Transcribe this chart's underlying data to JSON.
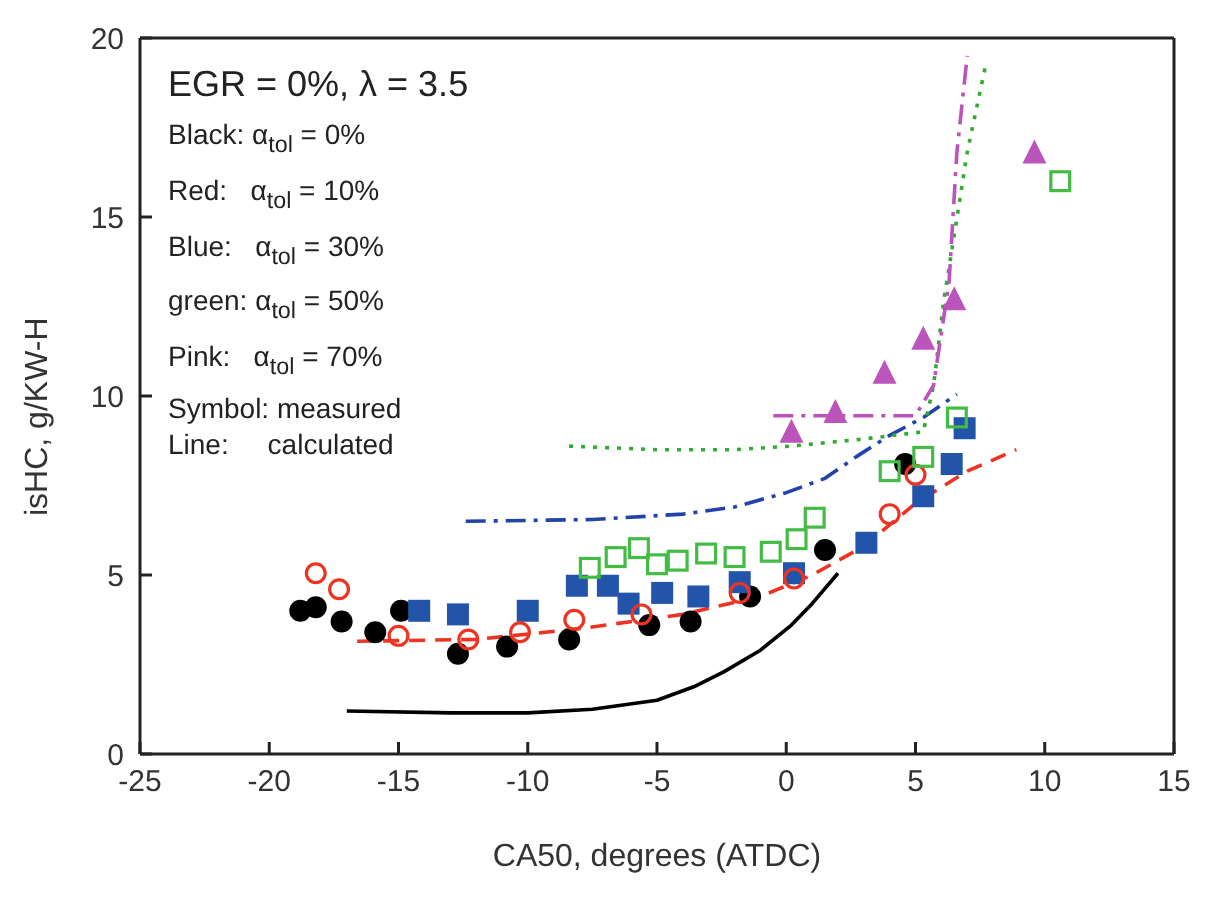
{
  "chart_data": {
    "type": "scatter",
    "xlabel": "CA50, degrees (ATDC)",
    "ylabel": "isHC, g/KW-H",
    "xlim": [
      -25,
      15
    ],
    "xticks": [
      -25,
      -20,
      -15,
      -10,
      -5,
      0,
      5,
      10,
      15
    ],
    "ylim": [
      0,
      20
    ],
    "yticks": [
      0,
      5,
      10,
      15,
      20
    ],
    "annotations": [
      "EGR = 0%, λ = 3.5",
      "Black: α$_{tol}$ = 0%",
      "Red:   α$_{tol}$ = 10%",
      "Blue:   α$_{tol}$ = 30%",
      "green: α$_{tol}$ = 50%",
      "Pink:   α$_{tol}$ = 70%",
      "Symbol: measured",
      "Line:     calculated"
    ],
    "series": [
      {
        "type": "line",
        "color": "#000000",
        "line_style": "solid",
        "marker": "none",
        "x": [
          -17,
          -13,
          -10,
          -7.5,
          -5,
          -3.5,
          -2.4,
          -1,
          0.2,
          1,
          2
        ],
        "values": [
          1.2,
          1.15,
          1.15,
          1.25,
          1.5,
          1.9,
          2.3,
          2.9,
          3.6,
          4.2,
          5.05
        ]
      },
      {
        "type": "line",
        "color": "#ee3322",
        "line_style": "dashed",
        "marker": "none",
        "x": [
          -16.6,
          -12,
          -8,
          -4,
          -1,
          1,
          3,
          5,
          7,
          8.9
        ],
        "values": [
          3.15,
          3.2,
          3.5,
          3.9,
          4.4,
          5.0,
          5.8,
          7.0,
          7.9,
          8.5
        ]
      },
      {
        "type": "line",
        "color": "#2244aa",
        "line_style": "dashdot",
        "marker": "none",
        "x": [
          -12.4,
          -7.5,
          -4,
          -2,
          0,
          1.5,
          2.7,
          4,
          5.3,
          6.6
        ],
        "values": [
          6.5,
          6.55,
          6.7,
          6.9,
          7.3,
          7.7,
          8.3,
          8.9,
          9.4,
          10.05
        ]
      },
      {
        "type": "line",
        "color": "#33aa33",
        "line_style": "dotted",
        "marker": "none",
        "x": [
          -8.4,
          -5,
          -2,
          0.2,
          3,
          5.3,
          5.7,
          6.1,
          6.5,
          7,
          7.7
        ],
        "values": [
          8.6,
          8.5,
          8.5,
          8.6,
          8.8,
          9.0,
          10.3,
          12.7,
          14.5,
          16.8,
          19.2
        ]
      },
      {
        "type": "line",
        "color": "#bb55bb",
        "line_style": "dashdot",
        "marker": "none",
        "x": [
          -0.5,
          2,
          5,
          5.7,
          6.3,
          6.6,
          7
        ],
        "values": [
          9.45,
          9.45,
          9.45,
          10.3,
          13.2,
          16.8,
          19.5
        ]
      },
      {
        "color": "#000000",
        "marker": "circle",
        "x": [
          -18.8,
          -18.2,
          -17.2,
          -15.9,
          -14.9,
          -12.7,
          -10.8,
          -8.4,
          -5.3,
          -3.7,
          -1.4,
          1.5,
          4.6
        ],
        "values": [
          4.0,
          4.1,
          3.7,
          3.4,
          4.0,
          2.8,
          3.0,
          3.2,
          3.6,
          3.7,
          4.4,
          5.7,
          8.1
        ]
      },
      {
        "color": "#2255aa",
        "marker": "square",
        "x": [
          -14.2,
          -12.7,
          -10,
          -8.1,
          -6.9,
          -6.1,
          -4.8,
          -3.4,
          -1.8,
          0.3,
          3.1,
          5.3,
          6.4,
          6.9
        ],
        "values": [
          4.0,
          3.9,
          4.0,
          4.7,
          4.7,
          4.2,
          4.5,
          4.4,
          4.8,
          5.05,
          5.9,
          7.2,
          8.1,
          9.1
        ]
      },
      {
        "color": "#ee3322",
        "marker": "circle_open",
        "x": [
          -18.2,
          -17.3,
          -15,
          -12.3,
          -10.3,
          -8.2,
          -5.6,
          -1.8,
          0.3,
          4,
          5
        ],
        "values": [
          5.05,
          4.6,
          3.3,
          3.2,
          3.4,
          3.75,
          3.9,
          4.5,
          4.9,
          6.7,
          7.8
        ]
      },
      {
        "color": "#44bb44",
        "marker": "square_open",
        "x": [
          -7.6,
          -6.6,
          -5.7,
          -5,
          -4.2,
          -3.1,
          -2,
          -0.6,
          0.4,
          1.1,
          4,
          5.3,
          6.6,
          10.6
        ],
        "values": [
          5.2,
          5.5,
          5.75,
          5.3,
          5.4,
          5.6,
          5.5,
          5.65,
          6.0,
          6.6,
          7.9,
          8.3,
          9.4,
          16.0
        ]
      },
      {
        "color": "#bb55bb",
        "marker": "triangle",
        "x": [
          0.2,
          1.9,
          3.8,
          5.3,
          6.5,
          9.6
        ],
        "values": [
          9.0,
          9.55,
          10.65,
          11.6,
          12.7,
          16.8
        ]
      }
    ]
  }
}
